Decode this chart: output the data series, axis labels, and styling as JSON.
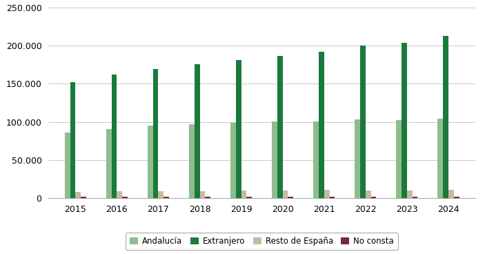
{
  "years": [
    2015,
    2016,
    2017,
    2018,
    2019,
    2020,
    2021,
    2022,
    2023,
    2024
  ],
  "series": {
    "Andalucía": [
      86000,
      91000,
      95000,
      97000,
      99000,
      101000,
      101000,
      103000,
      102000,
      104000
    ],
    "Extranjero": [
      152000,
      162000,
      169000,
      176000,
      181000,
      187000,
      192000,
      200000,
      204000,
      213000
    ],
    "Resto de España": [
      8000,
      9000,
      9500,
      9500,
      10000,
      10000,
      10500,
      10000,
      10000,
      10500
    ],
    "No consta": [
      1500,
      2000,
      2000,
      1500,
      1500,
      1500,
      1500,
      1500,
      1500,
      2000
    ]
  },
  "colors": {
    "Andalucía": "#8FBC8F",
    "Extranjero": "#1A7A3C",
    "Resto de España": "#C8BAA0",
    "No consta": "#7B2342"
  },
  "ylim": [
    0,
    250000
  ],
  "yticks": [
    0,
    50000,
    100000,
    150000,
    200000,
    250000
  ],
  "background_color": "#ffffff",
  "grid_color": "#c0c0c0"
}
